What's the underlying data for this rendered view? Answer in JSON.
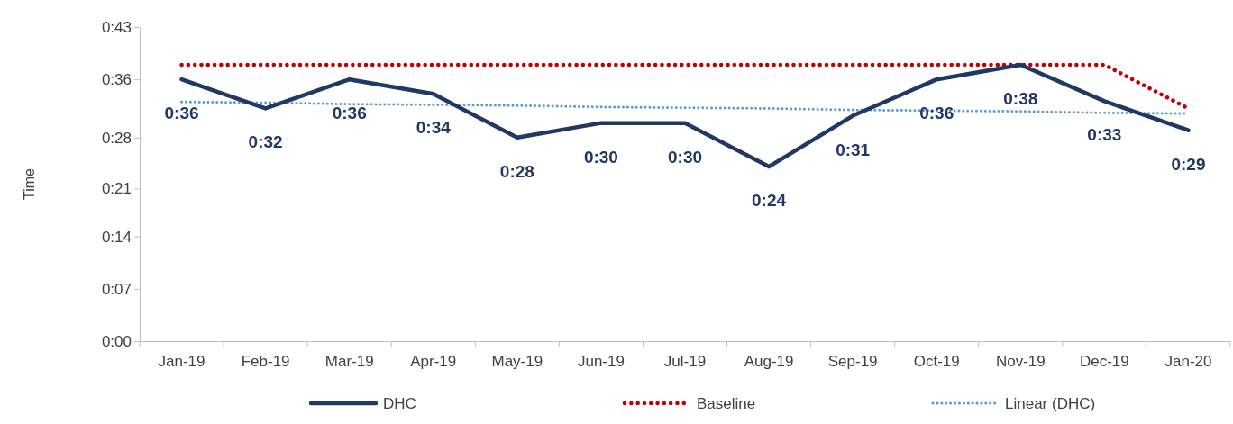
{
  "chart_data": {
    "type": "line",
    "ylabel": "Time",
    "categories": [
      "Jan-19",
      "Feb-19",
      "Mar-19",
      "Apr-19",
      "May-19",
      "Jun-19",
      "Jul-19",
      "Aug-19",
      "Sep-19",
      "Oct-19",
      "Nov-19",
      "Dec-19",
      "Jan-20"
    ],
    "ylim": [
      0,
      43.2
    ],
    "yticks": [
      {
        "value": 0,
        "label": "0:00"
      },
      {
        "value": 7.2,
        "label": "0:07"
      },
      {
        "value": 14.4,
        "label": "0:14"
      },
      {
        "value": 21,
        "label": "0:21"
      },
      {
        "value": 28,
        "label": "0:28"
      },
      {
        "value": 36,
        "label": "0:36"
      },
      {
        "value": 43.2,
        "label": "0:43"
      }
    ],
    "series": [
      {
        "name": "DHC",
        "color": "#1f3864",
        "line_style": "solid",
        "values": [
          36,
          32,
          36,
          34,
          28,
          30,
          30,
          24,
          31,
          36,
          38,
          33,
          29
        ],
        "value_labels": [
          "0:36",
          "0:32",
          "0:36",
          "0:34",
          "0:28",
          "0:30",
          "0:30",
          "0:24",
          "0:31",
          "0:36",
          "0:38",
          "0:33",
          "0:29"
        ]
      },
      {
        "name": "Baseline",
        "color": "#c00000",
        "line_style": "dotted",
        "values": [
          38,
          38,
          38,
          38,
          38,
          38,
          38,
          38,
          38,
          38,
          38,
          38,
          32
        ]
      },
      {
        "name": "Linear (DHC)",
        "color": "#5b9bd5",
        "line_style": "dotted",
        "values": [
          32.9,
          32.8,
          32.6,
          32.5,
          32.4,
          32.2,
          32.1,
          32.0,
          31.8,
          31.7,
          31.6,
          31.4,
          31.3
        ]
      }
    ],
    "grid": false,
    "marker": "none",
    "legend": "bottom"
  }
}
